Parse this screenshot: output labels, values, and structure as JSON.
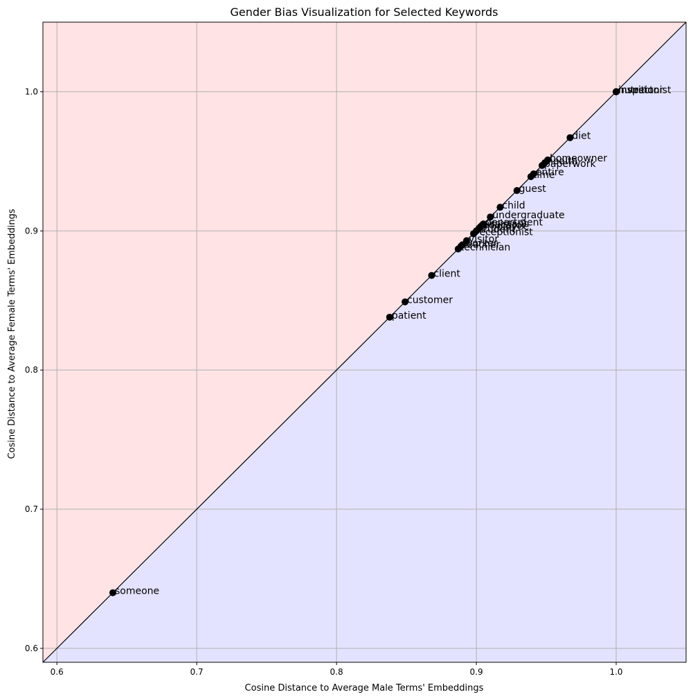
{
  "chart_data": {
    "type": "scatter",
    "title": "Gender Bias Visualization for Selected Keywords",
    "xlabel": "Cosine Distance to Average Male Terms' Embeddings",
    "ylabel": "Cosine Distance to Average Female Terms' Embeddings",
    "xlim": [
      0.59,
      1.05
    ],
    "ylim": [
      0.59,
      1.05
    ],
    "xticks": [
      0.6,
      0.7,
      0.8,
      0.9,
      1.0
    ],
    "yticks": [
      0.6,
      0.7,
      0.8,
      0.9,
      1.0
    ],
    "xtick_labels": [
      "0.6",
      "0.7",
      "0.8",
      "0.9",
      "1.0"
    ],
    "ytick_labels": [
      "0.6",
      "0.7",
      "0.8",
      "0.9",
      "1.0"
    ],
    "grid": true,
    "diagonal": "y = x",
    "region_above_color": "#ffe3e5",
    "region_below_color": "#e3e3ff",
    "point_color": "#000000",
    "points": [
      {
        "label": "someone",
        "x": 0.64,
        "y": 0.64
      },
      {
        "label": "patient",
        "x": 0.838,
        "y": 0.838
      },
      {
        "label": "customer",
        "x": 0.849,
        "y": 0.849
      },
      {
        "label": "client",
        "x": 0.868,
        "y": 0.868
      },
      {
        "label": "technician",
        "x": 0.887,
        "y": 0.887
      },
      {
        "label": "teacher",
        "x": 0.889,
        "y": 0.889
      },
      {
        "label": "worker",
        "x": 0.89,
        "y": 0.89
      },
      {
        "label": "visitor",
        "x": 0.893,
        "y": 0.893
      },
      {
        "label": "receptionist",
        "x": 0.898,
        "y": 0.898
      },
      {
        "label": "student",
        "x": 0.9,
        "y": 0.9
      },
      {
        "label": "employee",
        "x": 0.902,
        "y": 0.902
      },
      {
        "label": "educator",
        "x": 0.903,
        "y": 0.903
      },
      {
        "label": "assistant",
        "x": 0.904,
        "y": 0.904
      },
      {
        "label": "department",
        "x": 0.905,
        "y": 0.905
      },
      {
        "label": "undergraduate",
        "x": 0.91,
        "y": 0.91
      },
      {
        "label": "child",
        "x": 0.917,
        "y": 0.917
      },
      {
        "label": "guest",
        "x": 0.929,
        "y": 0.929
      },
      {
        "label": "time",
        "x": 0.939,
        "y": 0.939
      },
      {
        "label": "entire",
        "x": 0.941,
        "y": 0.941
      },
      {
        "label": "paperwork",
        "x": 0.947,
        "y": 0.947
      },
      {
        "label": "health",
        "x": 0.949,
        "y": 0.949
      },
      {
        "label": "homeowner",
        "x": 0.951,
        "y": 0.951
      },
      {
        "label": "diet",
        "x": 0.967,
        "y": 0.967
      },
      {
        "label": "investor",
        "x": 1.0,
        "y": 1.0
      },
      {
        "label": "inspector",
        "x": 1.0,
        "y": 1.0
      },
      {
        "label": "nutritionist",
        "x": 1.0,
        "y": 1.0
      }
    ]
  }
}
